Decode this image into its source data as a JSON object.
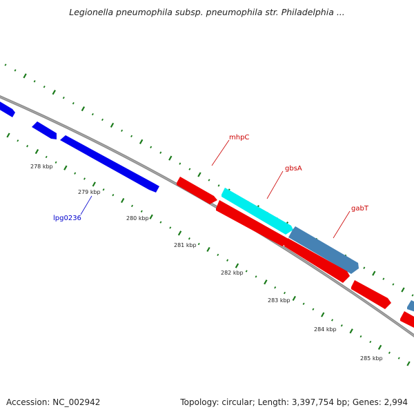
{
  "title": "Legionella pneumophila subsp. pneumophila str. Philadelphia ...",
  "footer": {
    "accession": "Accession: NC_002942",
    "topology": "Topology: circular; Length: 3,397,754 bp; Genes: 2,994"
  },
  "colors": {
    "backbone": "#808080",
    "tick": "#1a7a1a",
    "reverse_gene": "#0000ee",
    "forward_gene": "#ee0000",
    "highlight_gene": "#00eeee",
    "steelblue_gene": "#4682b4",
    "forward_label": "#cc0000",
    "reverse_label": "#0000cc"
  },
  "scale_labels": [
    "278 kbp",
    "279 kbp",
    "280 kbp",
    "281 kbp",
    "282 kbp",
    "283 kbp",
    "284 kbp",
    "285 kbp"
  ],
  "gene_labels": [
    {
      "text": "mhpC",
      "strand": "forward"
    },
    {
      "text": "gbsA",
      "strand": "forward"
    },
    {
      "text": "gabT",
      "strand": "forward"
    },
    {
      "text": "lpg0236",
      "strand": "reverse"
    }
  ]
}
